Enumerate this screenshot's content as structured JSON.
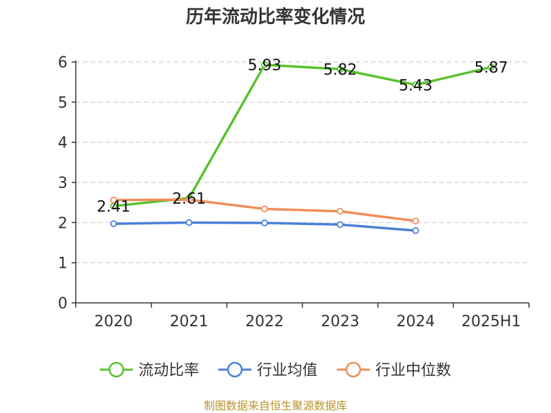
{
  "chart_data": {
    "type": "line",
    "title": "历年流动比率变化情况",
    "categories": [
      "2020",
      "2021",
      "2022",
      "2023",
      "2024",
      "2025H1"
    ],
    "ylim": [
      0,
      6
    ],
    "yticks": [
      "0",
      "1",
      "2",
      "3",
      "4",
      "5",
      "6"
    ],
    "grid": true,
    "legend_position": "bottom",
    "series": [
      {
        "name": "流动比率",
        "color": "#5ac12e",
        "values": [
          2.41,
          2.61,
          5.93,
          5.82,
          5.43,
          5.87
        ],
        "labels": [
          "2.41",
          "2.61",
          "5.93",
          "5.82",
          "5.43",
          "5.87"
        ]
      },
      {
        "name": "行业均值",
        "color": "#4a7fd8",
        "values": [
          1.97,
          2.0,
          1.99,
          1.95,
          1.8,
          null
        ]
      },
      {
        "name": "行业中位数",
        "color": "#f28c5a",
        "values": [
          2.56,
          2.57,
          2.34,
          2.28,
          2.04,
          null
        ]
      }
    ]
  },
  "source": "制图数据来自恒生聚源数据库"
}
